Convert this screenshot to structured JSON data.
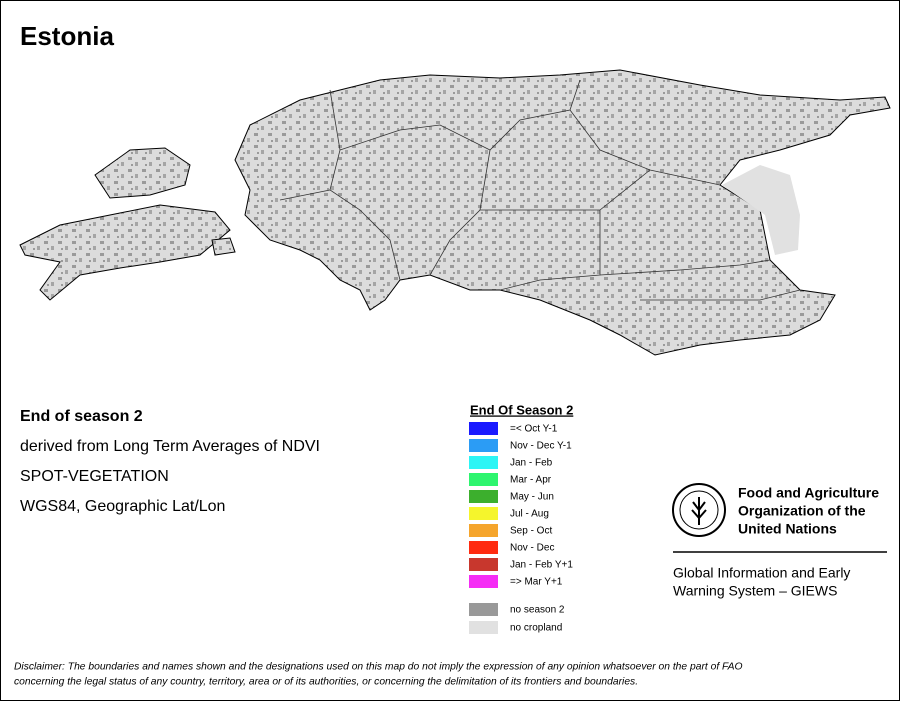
{
  "header": {
    "title": "Estonia"
  },
  "info": [
    "End of season 2",
    "derived from Long Term Averages of NDVI",
    "SPOT-VEGETATION",
    "WGS84, Geographic Lat/Lon"
  ],
  "legend": {
    "title": "End Of Season 2",
    "items": [
      {
        "label": "=< Oct Y-1",
        "color": "#1a1aff"
      },
      {
        "label": "Nov - Dec Y-1",
        "color": "#2b9cf5"
      },
      {
        "label": "Jan - Feb",
        "color": "#2cf5f5"
      },
      {
        "label": "Mar - Apr",
        "color": "#2df56e"
      },
      {
        "label": "May - Jun",
        "color": "#3caf2d"
      },
      {
        "label": "Jul - Aug",
        "color": "#f5f52c"
      },
      {
        "label": "Sep - Oct",
        "color": "#f5a52c"
      },
      {
        "label": "Nov - Dec",
        "color": "#ff2b10"
      },
      {
        "label": "Jan - Feb Y+1",
        "color": "#c8372d"
      },
      {
        "label": "=> Mar Y+1",
        "color": "#f52cf5"
      }
    ],
    "extra": [
      {
        "label": "no season 2",
        "color": "#999999"
      },
      {
        "label": "no cropland",
        "color": "#e1e1e1"
      }
    ]
  },
  "logo": {
    "org": [
      "Food and Agriculture",
      "Organization of the",
      "United Nations"
    ],
    "system": [
      "Global Information and Early",
      "Warning System – GIEWS"
    ]
  },
  "disclaimer": [
    "Disclaimer: The boundaries and names shown and the designations used on this map do not imply the expression of any opinion whatsoever on the part of FAO",
    "concerning the legal status of any country, territory, area or of its authorities, or concerning the delimitation of its frontiers and boundaries."
  ]
}
